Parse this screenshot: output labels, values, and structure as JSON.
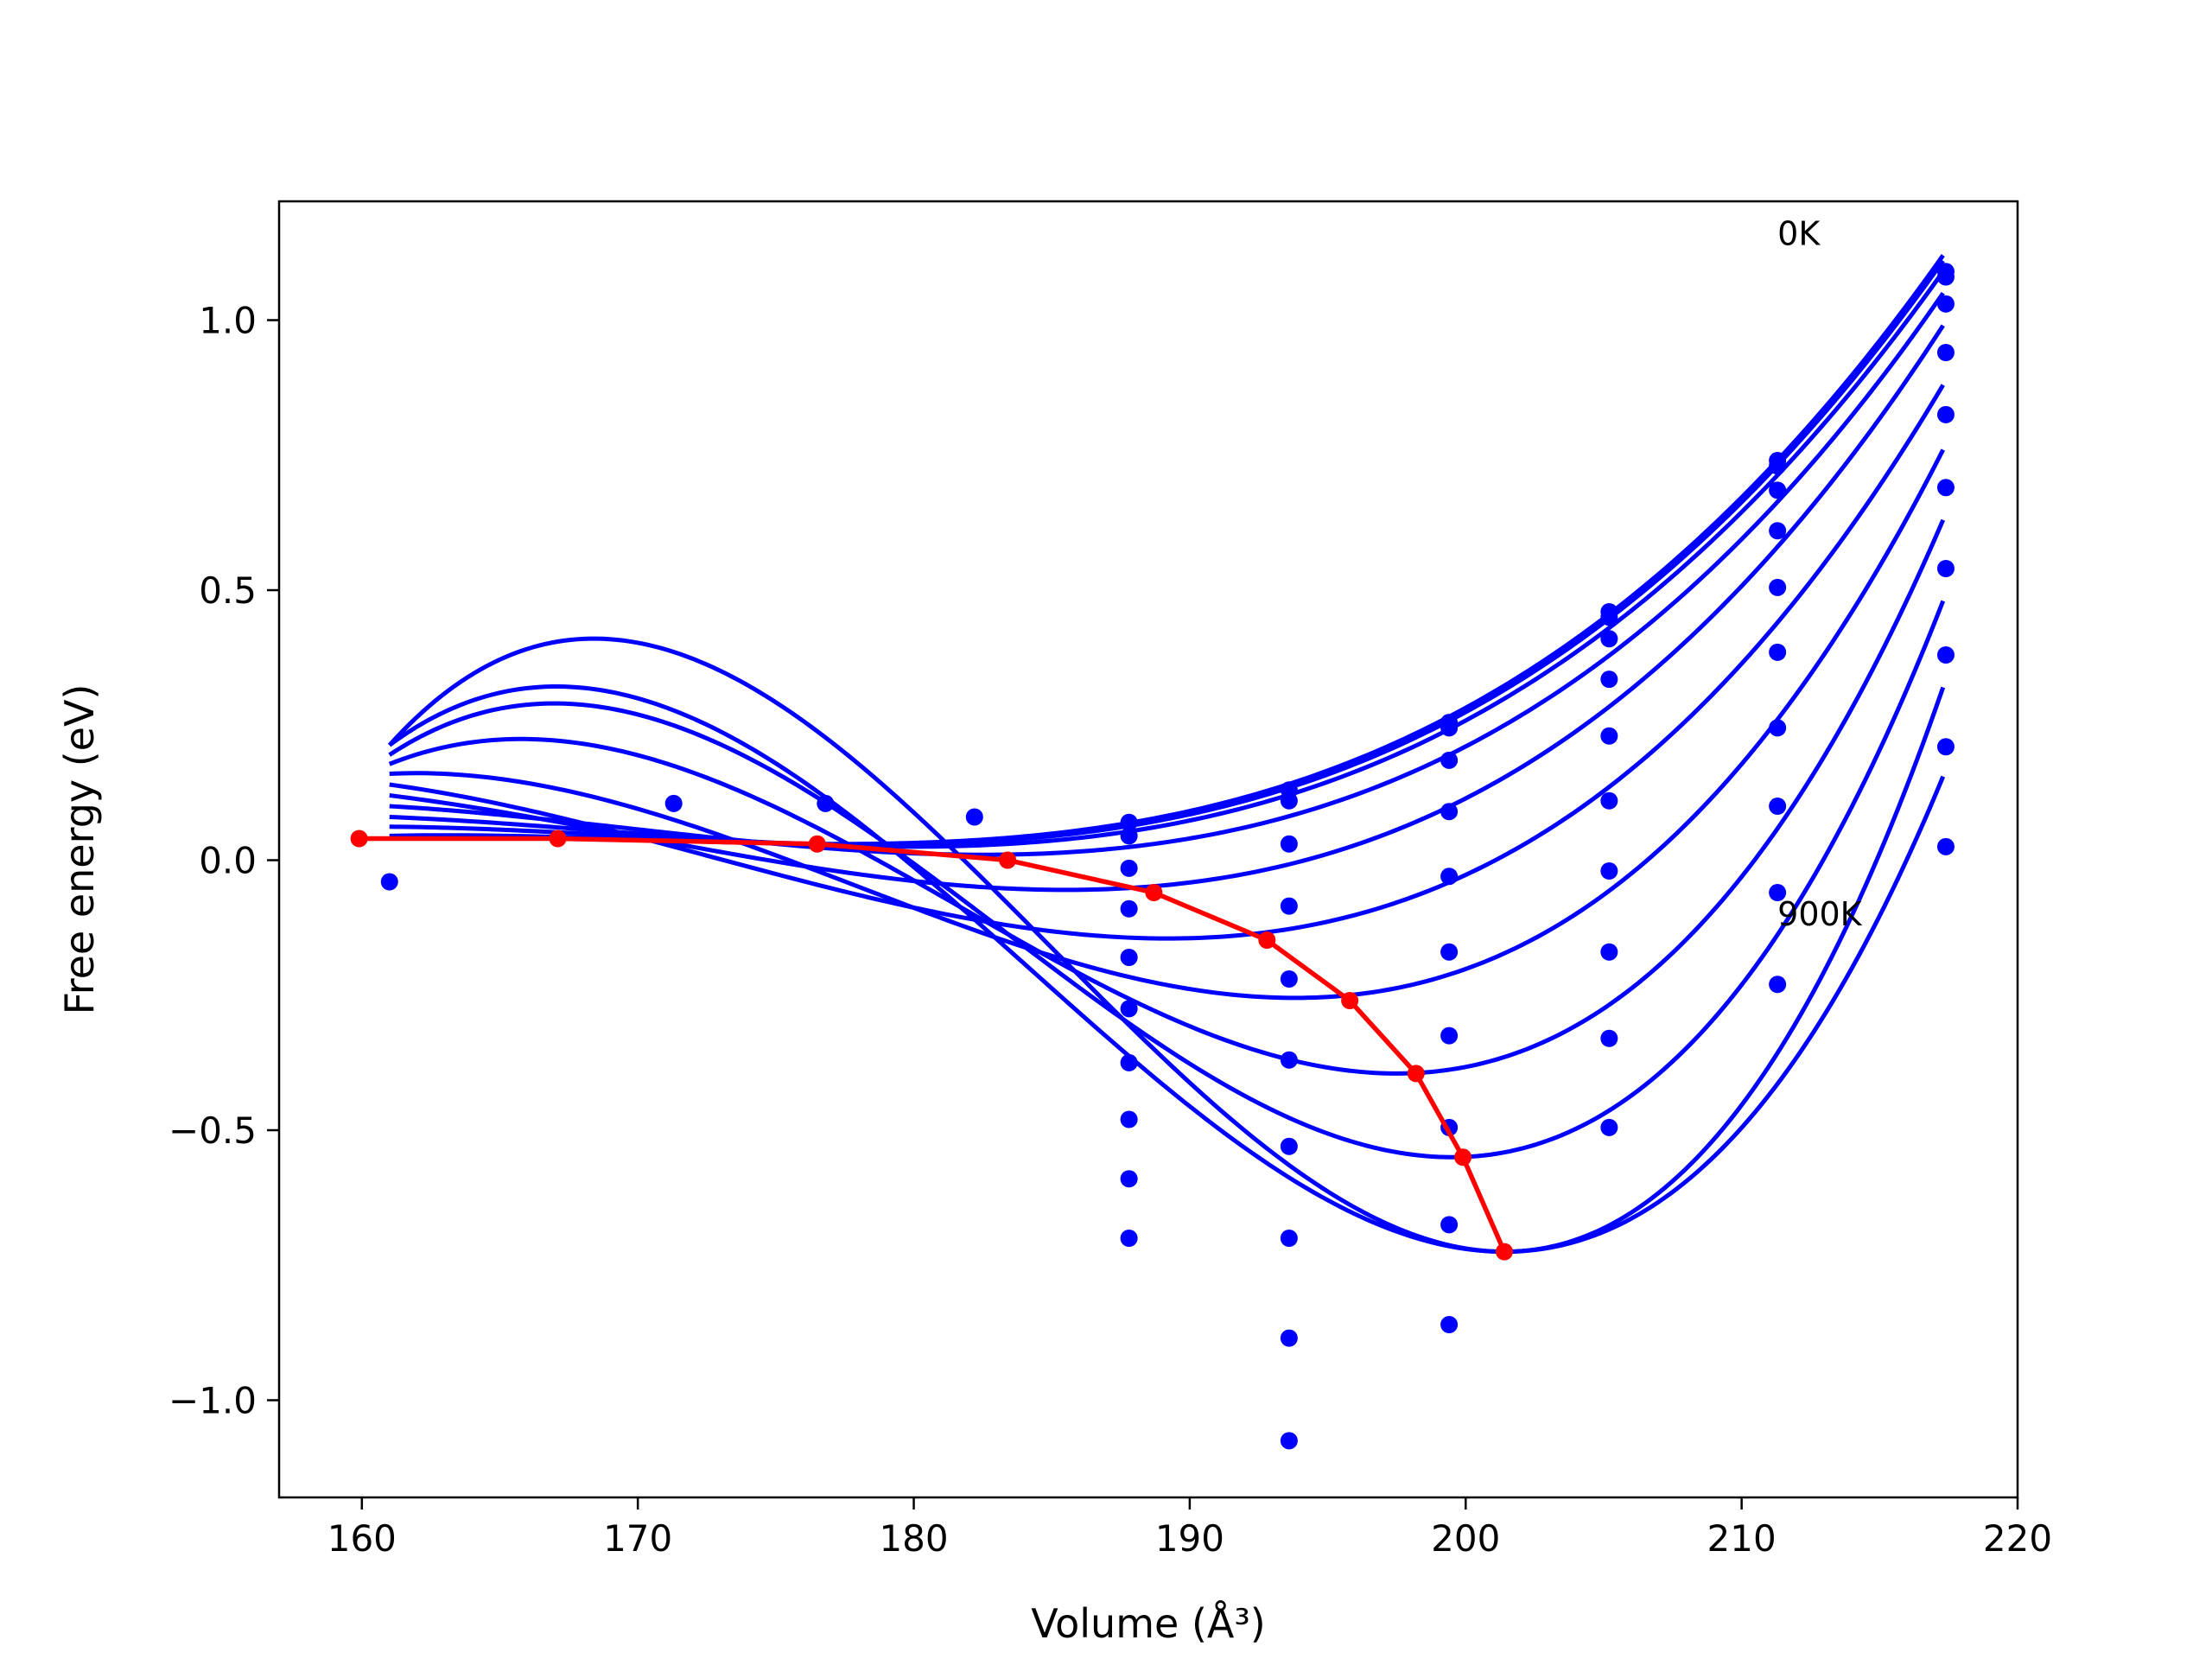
{
  "chart_data": {
    "type": "line",
    "title": "",
    "xlabel": "Volume (Å³)",
    "ylabel": "Free energy (eV)",
    "xlim": [
      157,
      220
    ],
    "ylim": [
      -1.18,
      1.22
    ],
    "xticks": [
      160,
      170,
      180,
      190,
      200,
      210,
      220
    ],
    "yticks": [
      1.0,
      0.5,
      0.0,
      -0.5,
      -1.0
    ],
    "xtick_labels": [
      "160",
      "170",
      "180",
      "190",
      "200",
      "210",
      "220"
    ],
    "ytick_labels": [
      "1.0",
      "0.5",
      "0.0",
      "−0.5",
      "−1.0"
    ],
    "grid": false,
    "legend": "none",
    "annotations": [
      {
        "text": "0K",
        "x": 211.3,
        "y": 1.16
      },
      {
        "text": "900K",
        "x": 211.3,
        "y": -0.1
      }
    ],
    "fit_x_range": [
      161,
      217.3
    ],
    "fit_curves": [
      {
        "min_v": 177.3,
        "min_f": 0.03,
        "end_f": 0.045,
        "high_f": 1.12
      },
      {
        "min_v": 178.5,
        "min_f": 0.029,
        "end_f": 0.062,
        "high_f": 1.11
      },
      {
        "min_v": 179.8,
        "min_f": 0.025,
        "end_f": 0.08,
        "high_f": 1.09
      },
      {
        "min_v": 182.5,
        "min_f": 0.01,
        "end_f": 0.1,
        "high_f": 1.05
      },
      {
        "min_v": 185.5,
        "min_f": -0.055,
        "end_f": 0.12,
        "high_f": 0.99
      },
      {
        "min_v": 189.2,
        "min_f": -0.145,
        "end_f": 0.14,
        "high_f": 0.88
      },
      {
        "min_v": 193.8,
        "min_f": -0.255,
        "end_f": 0.16,
        "high_f": 0.76
      },
      {
        "min_v": 197.5,
        "min_f": -0.395,
        "end_f": 0.178,
        "high_f": 0.63
      },
      {
        "min_v": 199.5,
        "min_f": -0.55,
        "end_f": 0.195,
        "high_f": 0.48
      },
      {
        "min_v": 201.4,
        "min_f": -0.725,
        "end_f": 0.213,
        "high_f": 0.32
      },
      {
        "min_v": 201.4,
        "min_f": -0.725,
        "end_f": 0.213,
        "high_f": 0.155
      }
    ],
    "data_points": [
      [
        161.0,
        -0.04
      ],
      [
        171.3,
        0.105
      ],
      [
        176.8,
        0.105
      ],
      [
        182.2,
        0.08
      ],
      [
        187.8,
        0.07
      ],
      [
        187.8,
        0.045
      ],
      [
        187.8,
        -0.015
      ],
      [
        187.8,
        -0.09
      ],
      [
        187.8,
        -0.18
      ],
      [
        187.8,
        -0.275
      ],
      [
        187.8,
        -0.375
      ],
      [
        187.8,
        -0.48
      ],
      [
        187.8,
        -0.59
      ],
      [
        187.8,
        -0.7
      ],
      [
        193.6,
        0.13
      ],
      [
        193.6,
        0.11
      ],
      [
        193.6,
        0.03
      ],
      [
        193.6,
        -0.085
      ],
      [
        193.6,
        -0.22
      ],
      [
        193.6,
        -0.37
      ],
      [
        193.6,
        -0.53
      ],
      [
        193.6,
        -0.7
      ],
      [
        193.6,
        -0.885
      ],
      [
        193.6,
        -1.075
      ],
      [
        199.4,
        0.255
      ],
      [
        199.4,
        0.245
      ],
      [
        199.4,
        0.185
      ],
      [
        199.4,
        0.09
      ],
      [
        199.4,
        -0.03
      ],
      [
        199.4,
        -0.17
      ],
      [
        199.4,
        -0.325
      ],
      [
        199.4,
        -0.495
      ],
      [
        199.4,
        -0.675
      ],
      [
        199.4,
        -0.86
      ],
      [
        205.2,
        0.46
      ],
      [
        205.2,
        0.45
      ],
      [
        205.2,
        0.41
      ],
      [
        205.2,
        0.335
      ],
      [
        205.2,
        0.23
      ],
      [
        205.2,
        0.11
      ],
      [
        205.2,
        -0.02
      ],
      [
        205.2,
        -0.17
      ],
      [
        205.2,
        -0.33
      ],
      [
        205.2,
        -0.495
      ],
      [
        211.3,
        0.74
      ],
      [
        211.3,
        0.73
      ],
      [
        211.3,
        0.685
      ],
      [
        211.3,
        0.61
      ],
      [
        211.3,
        0.505
      ],
      [
        211.3,
        0.385
      ],
      [
        211.3,
        0.245
      ],
      [
        211.3,
        0.1
      ],
      [
        211.3,
        -0.06
      ],
      [
        211.3,
        -0.23
      ],
      [
        217.4,
        1.09
      ],
      [
        217.4,
        1.08
      ],
      [
        217.4,
        1.03
      ],
      [
        217.4,
        0.94
      ],
      [
        217.4,
        0.825
      ],
      [
        217.4,
        0.69
      ],
      [
        217.4,
        0.54
      ],
      [
        217.4,
        0.38
      ],
      [
        217.4,
        0.21
      ],
      [
        217.4,
        0.025
      ]
    ],
    "minimum_path": [
      [
        159.9,
        0.04
      ],
      [
        167.1,
        0.04
      ],
      [
        176.5,
        0.03
      ],
      [
        183.4,
        0.0
      ],
      [
        188.7,
        -0.06
      ],
      [
        192.8,
        -0.148
      ],
      [
        195.8,
        -0.26
      ],
      [
        198.2,
        -0.395
      ],
      [
        199.9,
        -0.55
      ],
      [
        201.4,
        -0.725
      ]
    ],
    "colors": {
      "fit_curves": "#0000ff",
      "data_points": "#0000ff",
      "minimum_path": "#ff0000",
      "axes": "#000000"
    }
  }
}
